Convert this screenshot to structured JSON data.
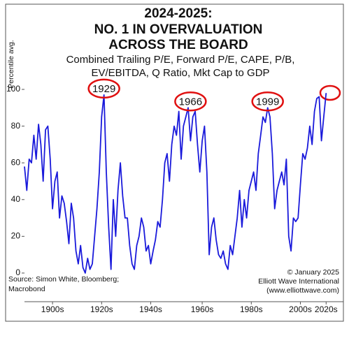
{
  "chart_data": {
    "type": "line",
    "title": [
      "2024-2025:",
      "NO. 1 IN OVERVALUATION",
      "ACROSS THE BOARD"
    ],
    "subtitle": [
      "Combined Trailing P/E, Forward P/E, CAPE, P/B,",
      "EV/EBITDA, Q Ratio, Mkt Cap to GDP"
    ],
    "y_label": "Percentile avg.",
    "source": [
      "Source: Simon White, Bloomberg;",
      "Macrobond"
    ],
    "credit": [
      "© January 2025",
      "Elliott Wave International",
      "(www.elliottwave.com)"
    ],
    "annotations": [
      {
        "label": "1929",
        "x": 1929
      },
      {
        "label": "1966",
        "x": 1966
      },
      {
        "label": "1999",
        "x": 1999
      }
    ],
    "x": [
      1895,
      1896,
      1897,
      1898,
      1899,
      1900,
      1901,
      1902,
      1903,
      1904,
      1905,
      1906,
      1907,
      1908,
      1909,
      1910,
      1911,
      1912,
      1913,
      1914,
      1915,
      1916,
      1917,
      1918,
      1919,
      1920,
      1921,
      1922,
      1923,
      1924,
      1925,
      1926,
      1927,
      1928,
      1929,
      1930,
      1931,
      1932,
      1933,
      1934,
      1935,
      1936,
      1937,
      1938,
      1939,
      1940,
      1941,
      1942,
      1943,
      1944,
      1945,
      1946,
      1947,
      1948,
      1949,
      1950,
      1951,
      1952,
      1953,
      1954,
      1955,
      1956,
      1957,
      1958,
      1959,
      1960,
      1961,
      1962,
      1963,
      1964,
      1965,
      1966,
      1967,
      1968,
      1969,
      1970,
      1971,
      1972,
      1973,
      1974,
      1975,
      1976,
      1977,
      1978,
      1979,
      1980,
      1981,
      1982,
      1983,
      1984,
      1985,
      1986,
      1987,
      1988,
      1989,
      1990,
      1991,
      1992,
      1993,
      1994,
      1995,
      1996,
      1997,
      1998,
      1999,
      2000,
      2001,
      2002,
      2003,
      2004,
      2005,
      2006,
      2007,
      2008,
      2009,
      2010,
      2011,
      2012,
      2013,
      2014,
      2015,
      2016,
      2017,
      2018,
      2019,
      2020,
      2021,
      2022,
      2023,
      2024
    ],
    "series": [
      {
        "name": "Percentile avg.",
        "color": "#1a1adb",
        "values": [
          58,
          45,
          62,
          60,
          75,
          62,
          81,
          70,
          50,
          78,
          80,
          62,
          35,
          50,
          55,
          30,
          42,
          38,
          28,
          16,
          38,
          30,
          12,
          5,
          15,
          3,
          0,
          8,
          2,
          5,
          20,
          35,
          55,
          85,
          97,
          55,
          25,
          2,
          40,
          20,
          45,
          60,
          42,
          30,
          30,
          15,
          5,
          2,
          15,
          20,
          30,
          25,
          12,
          15,
          5,
          12,
          18,
          28,
          25,
          40,
          60,
          65,
          50,
          70,
          80,
          75,
          88,
          62,
          80,
          85,
          90,
          72,
          85,
          88,
          70,
          55,
          72,
          80,
          55,
          10,
          25,
          30,
          18,
          10,
          8,
          12,
          5,
          2,
          15,
          10,
          20,
          30,
          45,
          25,
          40,
          30,
          45,
          50,
          55,
          45,
          65,
          75,
          85,
          82,
          90,
          85,
          65,
          35,
          45,
          50,
          55,
          48,
          62,
          20,
          12,
          30,
          28,
          30,
          48,
          65,
          62,
          68,
          80,
          70,
          88,
          95,
          96,
          72,
          85,
          98
        ]
      }
    ],
    "xlim": [
      1895,
      2029
    ],
    "xticks": [
      {
        "value": 1907,
        "label": "1900s"
      },
      {
        "value": 1928,
        "label": "1920s"
      },
      {
        "value": 1949,
        "label": "1940s"
      },
      {
        "value": 1971,
        "label": "1960s"
      },
      {
        "value": 1992,
        "label": "1980s"
      },
      {
        "value": 2013,
        "label": "2000s"
      },
      {
        "value": 2024,
        "label": "2020s"
      }
    ],
    "ylim": [
      -15.6,
      107.6
    ],
    "yticks": [
      0,
      20,
      40,
      60,
      80,
      100
    ]
  }
}
